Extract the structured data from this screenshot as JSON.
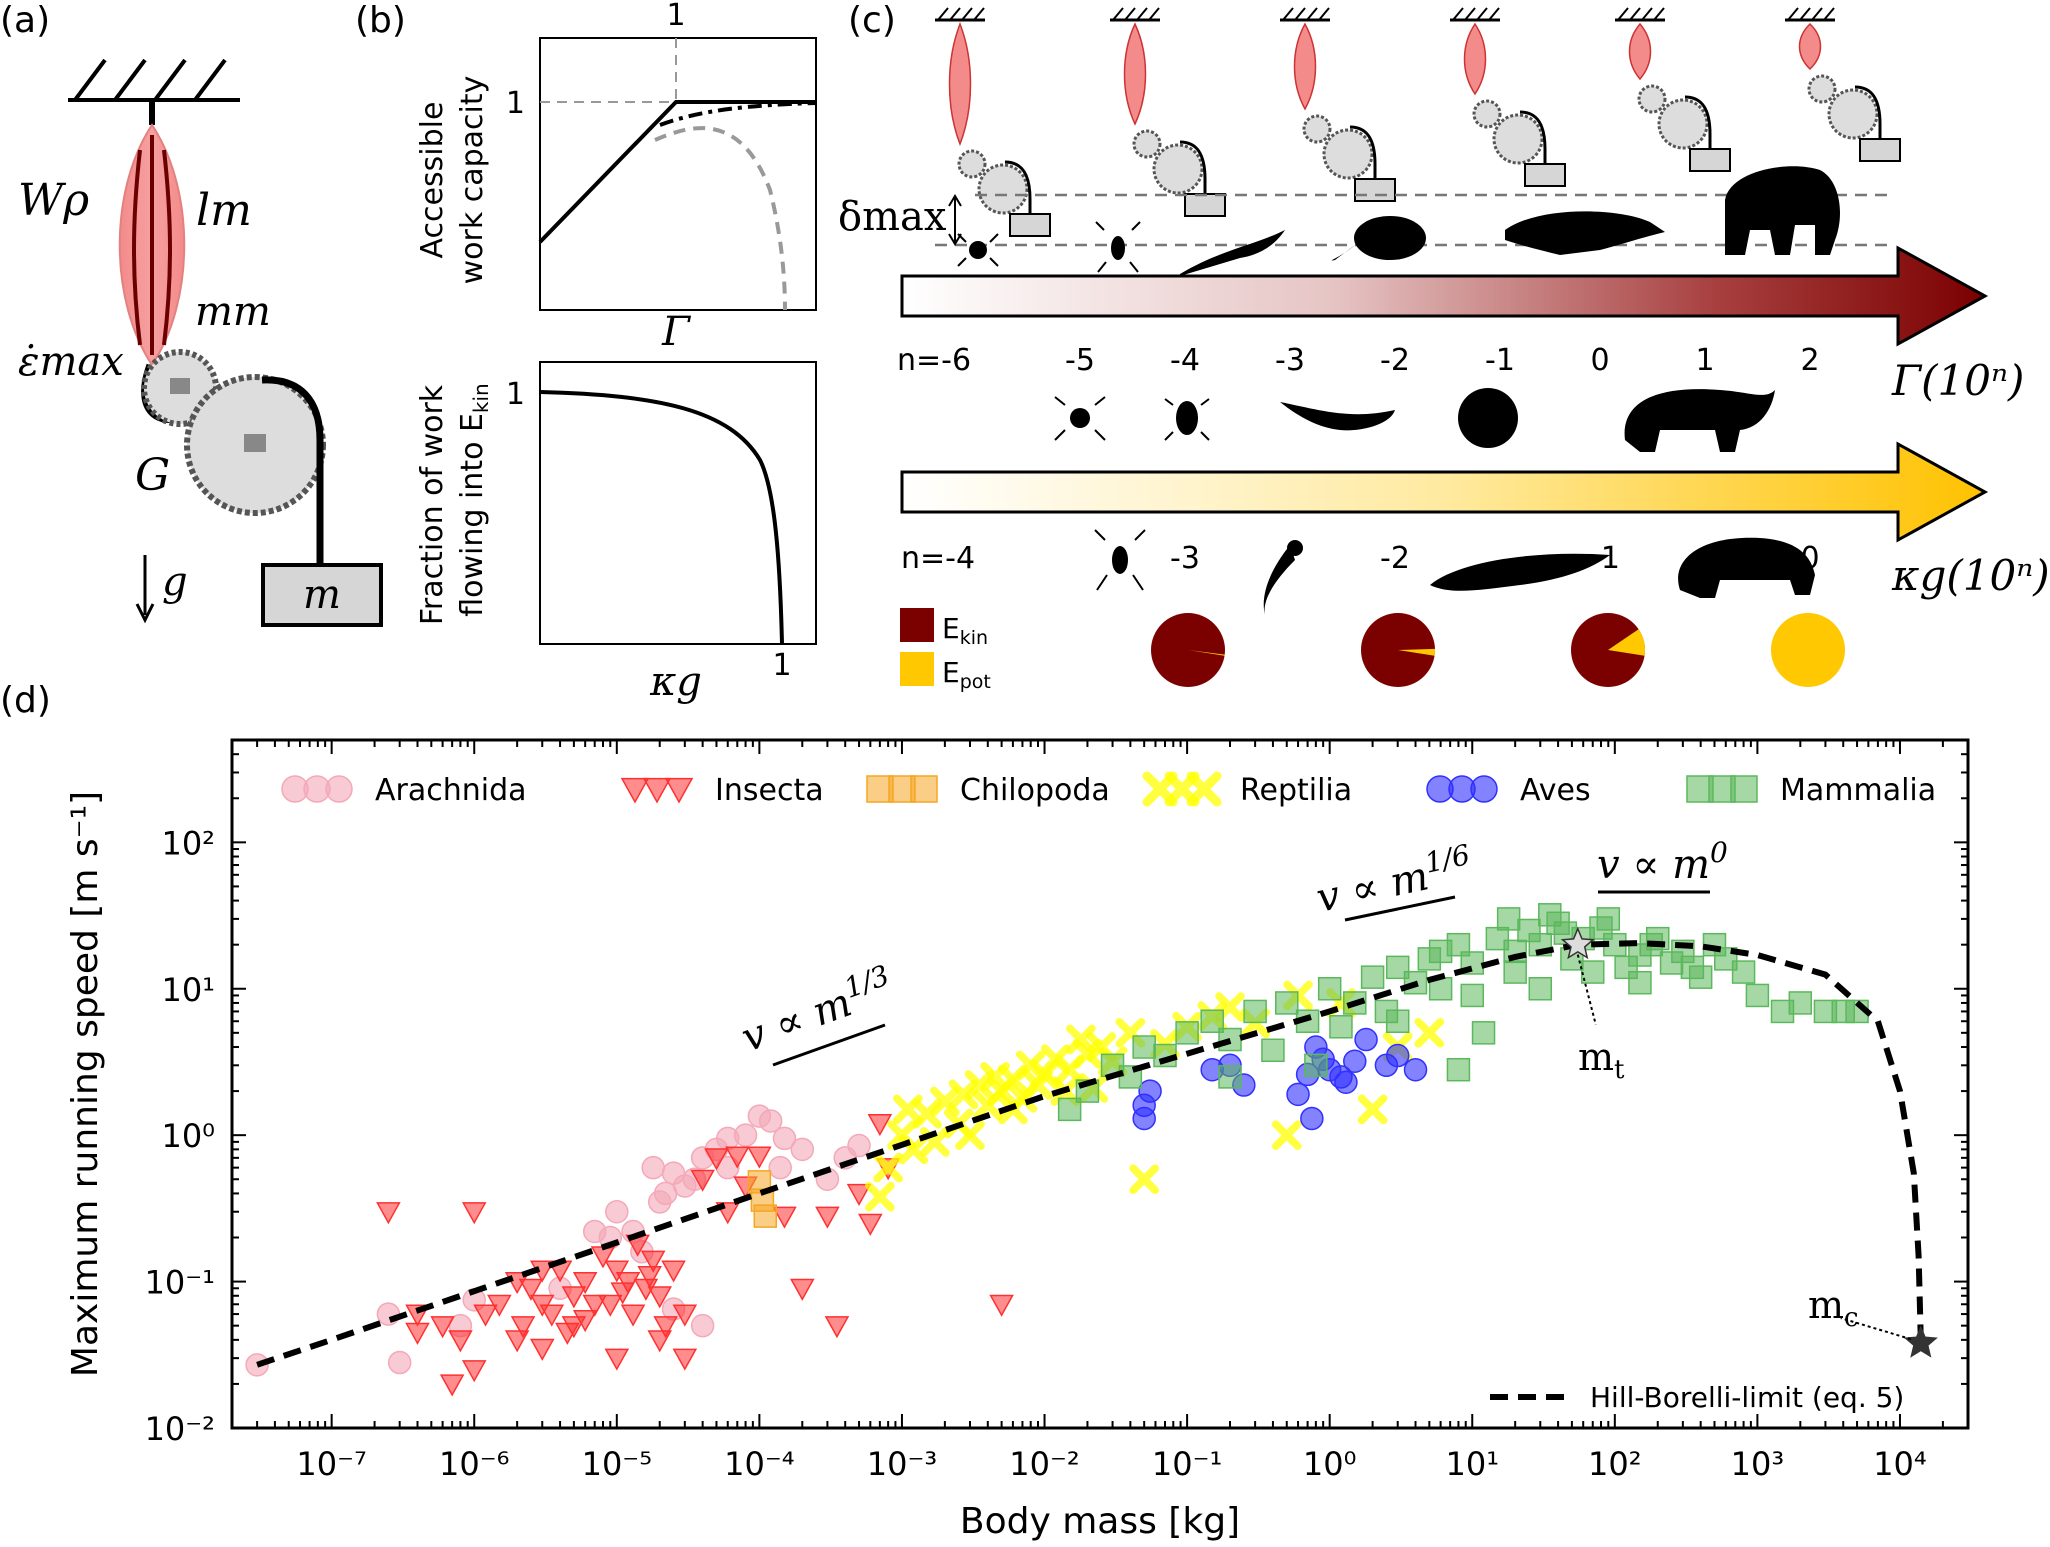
{
  "panels": {
    "a": {
      "label": "(a)",
      "sym_w": "Wρ",
      "sym_l": "lm",
      "sym_m": "mm",
      "sym_e": "ε̇max",
      "sym_g": "G",
      "sym_gravity": "g",
      "sym_mass": "m"
    },
    "b": {
      "label": "(b)",
      "top_ylabel_1": "Accessible",
      "top_ylabel_2": "work capacity",
      "top_xtick": "1",
      "top_ytick": "1",
      "top_xlabel": "Γ",
      "bottom_ylabel_1": "Fraction of work",
      "bottom_ylabel_2": "flowing into E",
      "bottom_ylabel_sub": "kin",
      "bottom_ytick": "1",
      "bottom_xtick": "1",
      "bottom_xlabel": "κg"
    },
    "c": {
      "label": "(c)",
      "delta_label": "δmax",
      "gamma_label": "Γ(10ⁿ)",
      "gamma_ticks": [
        "n=-6",
        "-5",
        "-4",
        "-3",
        "-2",
        "-1",
        "0",
        "1",
        "2"
      ],
      "kappa_label": "κg(10ⁿ)",
      "kappa_ticks": [
        "n=-4",
        "-3",
        "-2",
        "-1",
        "0"
      ],
      "legend_ekin": "E",
      "legend_ekin_sub": "kin",
      "legend_epot": "E",
      "legend_epot_sub": "pot",
      "pie_epot_fraction": [
        0.005,
        0.03,
        0.12,
        1.0
      ],
      "colors": {
        "ekin": "#7b0000",
        "epot": "#ffc800"
      }
    },
    "d": {
      "label": "(d)"
    }
  },
  "chart_data": {
    "type": "scatter",
    "xlabel": "Body mass [kg]",
    "ylabel": "Maximum running speed [m s⁻¹]",
    "xscale": "log",
    "yscale": "log",
    "xlim": [
      2e-08,
      30000
    ],
    "ylim": [
      0.01,
      500
    ],
    "xticks": [
      "10⁻⁷",
      "10⁻⁶",
      "10⁻⁵",
      "10⁻⁴",
      "10⁻³",
      "10⁻²",
      "10⁻¹",
      "10⁰",
      "10¹",
      "10²",
      "10³",
      "10⁴"
    ],
    "yticks": [
      "10⁻²",
      "10⁻¹",
      "10⁰",
      "10¹",
      "10²"
    ],
    "legend_position": "top",
    "annotations": {
      "slope1": "v ∝ m^1/3",
      "slope2": "v ∝ m^1/6",
      "slope3": "v ∝ m^0",
      "mt": "m",
      "mt_sub": "t",
      "mc": "m",
      "mc_sub": "c"
    },
    "hill_borelli": {
      "name": "Hill-Borelli-limit (eq. 5)",
      "x": [
        3e-08,
        1e-07,
        1e-06,
        1e-05,
        0.0001,
        0.001,
        0.01,
        0.1,
        1,
        5,
        20,
        55,
        150,
        400,
        1000,
        3000,
        7000,
        10000,
        12500,
        13500,
        14000
      ],
      "y": [
        0.027,
        0.04,
        0.086,
        0.185,
        0.4,
        0.86,
        1.85,
        3.6,
        7.0,
        11.5,
        16.5,
        20.0,
        20.5,
        19.5,
        17,
        12.5,
        6.0,
        2.0,
        0.55,
        0.15,
        0.04
      ]
    },
    "star_mt": {
      "x": 55,
      "y": 20
    },
    "star_mc": {
      "x": 14000,
      "y": 0.038
    },
    "series": [
      {
        "name": "Arachnida",
        "marker": "circle",
        "color": "#f4a8b8",
        "points": [
          [
            3e-08,
            0.027
          ],
          [
            2.5e-07,
            0.06
          ],
          [
            3e-07,
            0.028
          ],
          [
            8e-07,
            0.05
          ],
          [
            1e-06,
            0.075
          ],
          [
            4e-06,
            0.09
          ],
          [
            1e-05,
            0.3
          ],
          [
            1.3e-05,
            0.22
          ],
          [
            2e-05,
            0.35
          ],
          [
            2.5e-05,
            0.55
          ],
          [
            3e-05,
            0.45
          ],
          [
            4e-05,
            0.7
          ],
          [
            5e-05,
            0.8
          ],
          [
            6e-05,
            0.6
          ],
          [
            8e-05,
            1.0
          ],
          [
            0.0001,
            1.35
          ],
          [
            0.00012,
            1.25
          ],
          [
            0.00015,
            0.95
          ],
          [
            0.0002,
            0.8
          ],
          [
            0.0003,
            0.5
          ],
          [
            0.0004,
            0.7
          ],
          [
            0.0005,
            0.85
          ],
          [
            1.8e-05,
            0.6
          ],
          [
            2.2e-05,
            0.4
          ],
          [
            3.5e-05,
            0.5
          ],
          [
            6e-05,
            0.95
          ],
          [
            7e-06,
            0.22
          ],
          [
            9e-06,
            0.2
          ],
          [
            1.5e-05,
            0.16
          ],
          [
            2.5e-05,
            0.065
          ],
          [
            4e-05,
            0.05
          ],
          [
            0.00014,
            0.6
          ]
        ]
      },
      {
        "name": "Insecta",
        "marker": "triangle-down",
        "color": "#ff3030",
        "points": [
          [
            2.5e-07,
            0.3
          ],
          [
            4e-07,
            0.06
          ],
          [
            6e-07,
            0.05
          ],
          [
            8e-07,
            0.04
          ],
          [
            1e-06,
            0.3
          ],
          [
            1.5e-06,
            0.07
          ],
          [
            2e-06,
            0.1
          ],
          [
            2.5e-06,
            0.09
          ],
          [
            3e-06,
            0.07
          ],
          [
            3.5e-06,
            0.06
          ],
          [
            4e-06,
            0.12
          ],
          [
            5e-06,
            0.08
          ],
          [
            6e-06,
            0.1
          ],
          [
            7e-06,
            0.07
          ],
          [
            8e-06,
            0.15
          ],
          [
            1e-05,
            0.12
          ],
          [
            1.2e-05,
            0.1
          ],
          [
            1.4e-05,
            0.18
          ],
          [
            1.6e-05,
            0.09
          ],
          [
            1.8e-05,
            0.14
          ],
          [
            2e-05,
            0.08
          ],
          [
            2.5e-05,
            0.12
          ],
          [
            3e-05,
            0.06
          ],
          [
            4e-05,
            0.5
          ],
          [
            5e-05,
            0.7
          ],
          [
            6e-05,
            0.3
          ],
          [
            7e-05,
            0.72
          ],
          [
            8e-05,
            0.45
          ],
          [
            0.0001,
            0.72
          ],
          [
            0.00015,
            0.28
          ],
          [
            0.0002,
            0.09
          ],
          [
            0.0003,
            0.28
          ],
          [
            0.00035,
            0.05
          ],
          [
            0.0005,
            0.4
          ],
          [
            0.0006,
            0.25
          ],
          [
            0.0007,
            1.2
          ],
          [
            0.0008,
            0.6
          ],
          [
            0.005,
            0.07
          ],
          [
            2e-06,
            0.04
          ],
          [
            3e-06,
            0.035
          ],
          [
            5e-06,
            0.05
          ],
          [
            1e-05,
            0.03
          ],
          [
            2e-05,
            0.04
          ],
          [
            3e-05,
            0.03
          ],
          [
            1e-06,
            0.025
          ],
          [
            7e-07,
            0.02
          ],
          [
            4e-07,
            0.045
          ],
          [
            1.2e-06,
            0.06
          ],
          [
            2.2e-06,
            0.05
          ],
          [
            4.5e-06,
            0.045
          ],
          [
            6e-06,
            0.055
          ],
          [
            9e-06,
            0.07
          ],
          [
            1.3e-05,
            0.06
          ],
          [
            2.2e-05,
            0.05
          ],
          [
            1.1e-05,
            0.085
          ],
          [
            1.7e-05,
            0.11
          ],
          [
            3e-06,
            0.12
          ]
        ]
      },
      {
        "name": "Chilopoda",
        "marker": "square",
        "color": "#f5a623",
        "points": [
          [
            0.0001,
            0.48
          ],
          [
            0.000105,
            0.36
          ],
          [
            0.00011,
            0.28
          ]
        ]
      },
      {
        "name": "Reptilia",
        "marker": "x",
        "color": "#ffff00",
        "points": [
          [
            0.0007,
            0.38
          ],
          [
            0.0008,
            0.6
          ],
          [
            0.001,
            1.0
          ],
          [
            0.0012,
            0.8
          ],
          [
            0.0015,
            1.4
          ],
          [
            0.002,
            1.7
          ],
          [
            0.0025,
            1.2
          ],
          [
            0.003,
            1.0
          ],
          [
            0.0035,
            2.2
          ],
          [
            0.004,
            1.6
          ],
          [
            0.005,
            2.0
          ],
          [
            0.006,
            2.4
          ],
          [
            0.007,
            1.8
          ],
          [
            0.008,
            3.0
          ],
          [
            0.01,
            2.6
          ],
          [
            0.012,
            3.3
          ],
          [
            0.015,
            2.8
          ],
          [
            0.02,
            3.6
          ],
          [
            0.025,
            4.0
          ],
          [
            0.03,
            3.2
          ],
          [
            0.04,
            5.0
          ],
          [
            0.05,
            0.5
          ],
          [
            0.07,
            4.2
          ],
          [
            0.1,
            5.5
          ],
          [
            0.15,
            6.5
          ],
          [
            0.2,
            7.5
          ],
          [
            0.3,
            5.8
          ],
          [
            0.6,
            9.0
          ],
          [
            1.2,
            8.0
          ],
          [
            2.0,
            1.5
          ],
          [
            3.0,
            4.0
          ],
          [
            5.0,
            5.0
          ],
          [
            0.5,
            1.0
          ],
          [
            0.0017,
            0.9
          ],
          [
            0.0045,
            2.5
          ],
          [
            0.009,
            2.2
          ],
          [
            0.018,
            4.5
          ],
          [
            0.022,
            2.1
          ],
          [
            0.006,
            1.5
          ],
          [
            0.0011,
            1.5
          ],
          [
            0.0027,
            1.9
          ],
          [
            0.014,
            2.0
          ]
        ]
      },
      {
        "name": "Aves",
        "marker": "circle",
        "color": "#3030ff",
        "points": [
          [
            0.05,
            1.3
          ],
          [
            0.05,
            1.6
          ],
          [
            0.055,
            2.0
          ],
          [
            0.15,
            2.8
          ],
          [
            0.2,
            3.0
          ],
          [
            0.25,
            2.2
          ],
          [
            0.6,
            1.9
          ],
          [
            0.7,
            2.6
          ],
          [
            0.9,
            3.3
          ],
          [
            1.0,
            2.8
          ],
          [
            1.2,
            2.5
          ],
          [
            1.5,
            3.2
          ],
          [
            1.8,
            4.5
          ],
          [
            2.5,
            3.0
          ],
          [
            3.0,
            3.5
          ],
          [
            4.0,
            2.8
          ],
          [
            0.75,
            1.3
          ],
          [
            0.8,
            4.0
          ],
          [
            1.3,
            2.3
          ]
        ]
      },
      {
        "name": "Mammalia",
        "marker": "square",
        "color": "#5cb85c",
        "points": [
          [
            0.015,
            1.5
          ],
          [
            0.02,
            2.0
          ],
          [
            0.03,
            3.0
          ],
          [
            0.04,
            2.5
          ],
          [
            0.05,
            4.0
          ],
          [
            0.07,
            3.5
          ],
          [
            0.1,
            5.0
          ],
          [
            0.15,
            6.0
          ],
          [
            0.2,
            4.5
          ],
          [
            0.3,
            7.0
          ],
          [
            0.5,
            8.0
          ],
          [
            0.7,
            6.0
          ],
          [
            1,
            10
          ],
          [
            1.5,
            8
          ],
          [
            2,
            12
          ],
          [
            3,
            14
          ],
          [
            4,
            11
          ],
          [
            5,
            16
          ],
          [
            6,
            10
          ],
          [
            8,
            20
          ],
          [
            10,
            15
          ],
          [
            15,
            22
          ],
          [
            20,
            18
          ],
          [
            25,
            25
          ],
          [
            30,
            20
          ],
          [
            40,
            28
          ],
          [
            50,
            16
          ],
          [
            60,
            22
          ],
          [
            80,
            26
          ],
          [
            100,
            20
          ],
          [
            120,
            14
          ],
          [
            150,
            17
          ],
          [
            200,
            22
          ],
          [
            250,
            15
          ],
          [
            300,
            18
          ],
          [
            400,
            12
          ],
          [
            500,
            20
          ],
          [
            600,
            16
          ],
          [
            800,
            13
          ],
          [
            1000,
            9
          ],
          [
            1500,
            7
          ],
          [
            2000,
            8
          ],
          [
            3000,
            7
          ],
          [
            4000,
            7
          ],
          [
            5000,
            7
          ],
          [
            8,
            2.8
          ],
          [
            12,
            5
          ],
          [
            3,
            6
          ],
          [
            0.8,
            3.0
          ],
          [
            6,
            18
          ],
          [
            45,
            24
          ],
          [
            70,
            13
          ],
          [
            180,
            20
          ],
          [
            350,
            14
          ],
          [
            30,
            10
          ],
          [
            0.2,
            2.5
          ],
          [
            0.4,
            3.8
          ],
          [
            1.2,
            5.5
          ],
          [
            2.5,
            7.0
          ],
          [
            10,
            9
          ],
          [
            20,
            13
          ],
          [
            150,
            11
          ],
          [
            18,
            30
          ],
          [
            35,
            32
          ],
          [
            90,
            30
          ]
        ]
      }
    ]
  }
}
